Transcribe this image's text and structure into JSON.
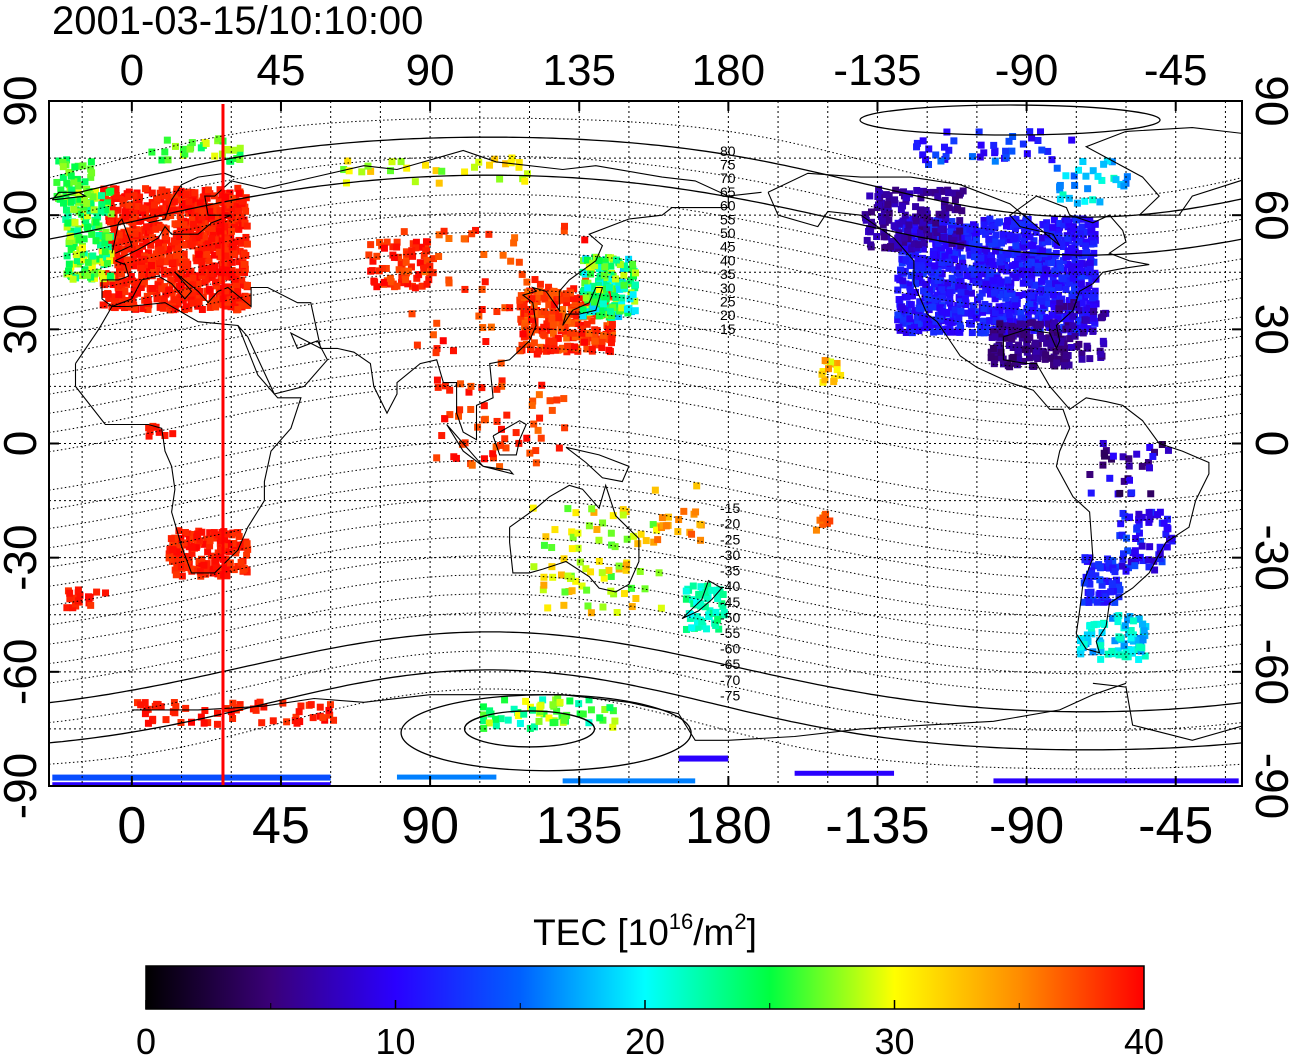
{
  "header": {
    "timestamp": "2001-03-15/10:10:00"
  },
  "map": {
    "lon_ticks": [
      "0",
      "45",
      "90",
      "135",
      "180",
      "-135",
      "-90",
      "-45"
    ],
    "lat_ticks": [
      "90",
      "60",
      "30",
      "0",
      "-30",
      "-60",
      "-90"
    ],
    "lon_tick_values": [
      0,
      45,
      90,
      135,
      180,
      225,
      270,
      315
    ],
    "lat_tick_values": [
      90,
      60,
      30,
      0,
      -30,
      -60,
      -90
    ],
    "lon_range": [
      -25,
      335
    ],
    "lat_range": [
      -90,
      90
    ],
    "terminator_lon": 27.5,
    "contour_labels_north": [
      "80",
      "75",
      "70",
      "65",
      "60",
      "55",
      "50",
      "45",
      "40",
      "35",
      "30",
      "25",
      "20",
      "15"
    ],
    "contour_labels_south": [
      "-15",
      "-20",
      "-25",
      "-30",
      "-35",
      "-40",
      "-45",
      "-50",
      "-55",
      "-60",
      "-65",
      "-70",
      "-75"
    ],
    "colors": {
      "terminator": "#ff0000",
      "frame": "#000000",
      "grid": "#000000"
    }
  },
  "colorbar": {
    "label_main": "TEC  [10",
    "label_exp": "16",
    "label_mid": "/m",
    "label_exp2": "2",
    "label_end": "]",
    "min": 0,
    "max": 40,
    "tick_labels": [
      "0",
      "10",
      "20",
      "30",
      "40"
    ],
    "stops": [
      "#000000",
      "#3a0078",
      "#2a00ff",
      "#0060ff",
      "#00ffff",
      "#00ff40",
      "#ffff00",
      "#ff8c00",
      "#ff0000"
    ]
  }
}
